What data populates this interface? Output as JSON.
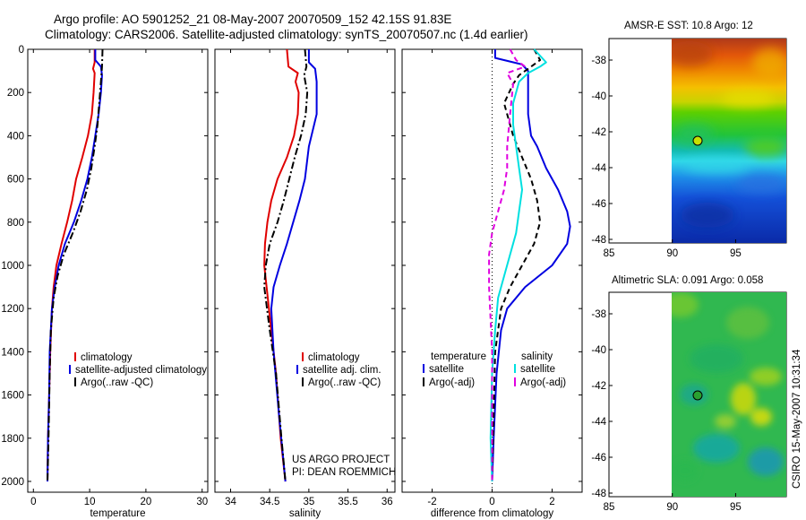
{
  "title": {
    "line1": "Argo profile: AO 5901252_21 08-May-2007 20070509_152 42.15S 91.83E",
    "line2": "Climatology: CARS2006. Satellite-adjusted climatology: synTS_20070507.nc (1.4d earlier)"
  },
  "colors": {
    "clim": "#e00000",
    "sat": "#0000e0",
    "argo": "#000000",
    "cyan": "#00e0e0",
    "magenta": "#e000e0"
  },
  "chart_data": [
    {
      "type": "line",
      "id": "temperature",
      "xlabel": "temperature",
      "xlim": [
        -1,
        31
      ],
      "ylim": [
        0,
        2050
      ],
      "x_ticks": [
        "0",
        "10",
        "20",
        "30"
      ],
      "y_ticks": [
        "0",
        "200",
        "400",
        "600",
        "800",
        "1000",
        "1200",
        "1400",
        "1600",
        "1800",
        "2000"
      ],
      "legend": [
        "climatology",
        "satellite-adjusted climatology",
        "Argo(..raw -QC)"
      ],
      "series": [
        {
          "name": "climatology",
          "color": "#e00000",
          "style": "solid",
          "x": [
            10.9,
            10.9,
            10.6,
            10.9,
            10.7,
            10.4,
            9.7,
            8.7,
            7.6,
            6.9,
            6.0,
            5.0,
            4.1,
            3.6,
            3.3,
            3.0,
            2.8,
            2.6,
            2.5
          ],
          "y": [
            0,
            60,
            90,
            110,
            200,
            300,
            400,
            500,
            600,
            700,
            800,
            900,
            1000,
            1100,
            1200,
            1400,
            1600,
            1800,
            2000
          ]
        },
        {
          "name": "satellite-adjusted climatology",
          "color": "#0000e0",
          "style": "solid",
          "x": [
            11.0,
            11.0,
            12.0,
            12.2,
            12.0,
            11.6,
            11.0,
            10.4,
            9.6,
            8.5,
            7.2,
            5.6,
            4.5,
            3.8,
            3.3,
            2.9,
            2.8,
            2.6,
            2.5
          ],
          "y": [
            0,
            50,
            80,
            120,
            200,
            300,
            400,
            500,
            600,
            700,
            800,
            900,
            1000,
            1100,
            1200,
            1400,
            1600,
            1800,
            2000
          ]
        },
        {
          "name": "Argo(..raw -QC)",
          "color": "#000000",
          "style": "dashdot",
          "x": [
            12.3,
            12.2,
            12.0,
            11.7,
            11.4,
            10.9,
            10.3,
            9.5,
            8.4,
            7.0,
            5.4,
            4.3,
            3.6,
            3.1,
            2.9,
            2.7,
            2.5
          ],
          "y": [
            0,
            80,
            150,
            250,
            350,
            450,
            550,
            650,
            750,
            850,
            950,
            1050,
            1150,
            1300,
            1500,
            1800,
            2000
          ]
        }
      ]
    },
    {
      "type": "line",
      "id": "salinity",
      "xlabel": "salinity",
      "xlim": [
        33.8,
        36.1
      ],
      "ylim": [
        0,
        2050
      ],
      "x_ticks": [
        "34",
        "34.5",
        "35",
        "35.5",
        "36"
      ],
      "legend": [
        "climatology",
        "satellite adj. clim.",
        "Argo(..raw -QC)"
      ],
      "annotation": [
        "US ARGO PROJECT",
        "PI: DEAN ROEMMICH"
      ],
      "series": [
        {
          "name": "climatology",
          "color": "#e00000",
          "style": "solid",
          "x": [
            34.72,
            34.74,
            34.86,
            34.83,
            34.87,
            34.86,
            34.81,
            34.72,
            34.6,
            34.52,
            34.47,
            34.44,
            34.43,
            34.46,
            34.52,
            34.58,
            34.64,
            34.7
          ],
          "y": [
            0,
            80,
            110,
            150,
            200,
            300,
            400,
            500,
            600,
            700,
            800,
            900,
            1000,
            1100,
            1300,
            1500,
            1800,
            2000
          ]
        },
        {
          "name": "satellite adj. clim.",
          "color": "#0000e0",
          "style": "solid",
          "x": [
            35.0,
            35.0,
            35.08,
            35.1,
            35.1,
            35.0,
            34.95,
            34.88,
            34.8,
            34.72,
            34.63,
            34.55,
            34.52,
            34.55,
            34.62,
            34.7
          ],
          "y": [
            0,
            60,
            90,
            150,
            300,
            450,
            600,
            700,
            800,
            900,
            1000,
            1100,
            1200,
            1400,
            1700,
            2000
          ]
        },
        {
          "name": "Argo(..raw -QC)",
          "color": "#000000",
          "style": "dashdot",
          "x": [
            34.95,
            34.97,
            34.94,
            34.98,
            34.96,
            34.9,
            34.82,
            34.75,
            34.68,
            34.6,
            34.5,
            34.45,
            34.43,
            34.5,
            34.58,
            34.65,
            34.7
          ],
          "y": [
            0,
            80,
            120,
            200,
            300,
            400,
            500,
            600,
            700,
            800,
            900,
            1000,
            1100,
            1300,
            1500,
            1800,
            2000
          ]
        }
      ]
    },
    {
      "type": "line",
      "id": "difference",
      "xlabel": "difference from climatology",
      "xlim": [
        -3,
        3
      ],
      "ylim": [
        0,
        2050
      ],
      "x_ticks": [
        "-2",
        "0",
        "2"
      ],
      "legend_temperature_title": "temperature",
      "legend_salinity_title": "salinity",
      "legend": [
        "satellite",
        "Argo(-adj)",
        "satellite",
        "Argo(-adj)"
      ],
      "series": [
        {
          "name": "temperature satellite",
          "color": "#0000e0",
          "style": "solid",
          "x": [
            0.1,
            0.1,
            1.0,
            1.2,
            1.2,
            1.2,
            1.3,
            1.5,
            1.8,
            2.2,
            2.5,
            2.6,
            2.5,
            2.0,
            1.1,
            0.5,
            0.3,
            0.15,
            0.05,
            0.0
          ],
          "y": [
            0,
            40,
            70,
            100,
            200,
            300,
            400,
            450,
            550,
            650,
            750,
            820,
            900,
            1000,
            1100,
            1200,
            1300,
            1500,
            1800,
            2000
          ]
        },
        {
          "name": "temperature Argo(-adj)",
          "color": "#000000",
          "style": "dashed",
          "x": [
            1.4,
            1.6,
            1.3,
            0.9,
            0.7,
            0.4,
            0.7,
            1.0,
            1.3,
            1.5,
            1.6,
            1.4,
            1.0,
            0.6,
            0.3,
            0.1,
            0.05,
            0.0
          ],
          "y": [
            0,
            50,
            80,
            120,
            160,
            250,
            400,
            500,
            600,
            700,
            800,
            900,
            1000,
            1100,
            1200,
            1400,
            1700,
            2000
          ]
        },
        {
          "name": "salinity satellite",
          "color": "#00e0e0",
          "style": "solid",
          "x": [
            1.4,
            1.8,
            1.6,
            1.2,
            0.9,
            0.7,
            0.7,
            0.8,
            0.9,
            1.0,
            0.9,
            0.8,
            0.6,
            0.4,
            0.2,
            0.1,
            0.0,
            -0.05,
            0.0
          ],
          "y": [
            0,
            60,
            80,
            110,
            150,
            250,
            350,
            450,
            550,
            650,
            750,
            850,
            950,
            1050,
            1150,
            1300,
            1500,
            1800,
            2000
          ]
        },
        {
          "name": "salinity Argo(-adj)",
          "color": "#e000e0",
          "style": "dashed",
          "x": [
            0.6,
            0.8,
            1.1,
            0.5,
            0.7,
            0.6,
            0.5,
            0.5,
            0.4,
            0.2,
            0.0,
            -0.1,
            -0.1,
            0.0,
            0.0
          ],
          "y": [
            0,
            50,
            80,
            110,
            160,
            300,
            450,
            550,
            650,
            750,
            850,
            950,
            1100,
            1400,
            2000
          ]
        }
      ]
    },
    {
      "type": "heatmap",
      "id": "sst-map",
      "title": "AMSR-E SST: 10.8 Argo: 12",
      "xlim": [
        85,
        99
      ],
      "ylim": [
        -48.2,
        -36.8
      ],
      "x_ticks": [
        "85",
        "90",
        "95"
      ],
      "y_ticks": [
        "-38",
        "-40",
        "-42",
        "-44",
        "-46",
        "-48"
      ],
      "data_extent_lon": [
        90,
        99
      ],
      "argo_position": {
        "lon": 91.83,
        "lat": -42.15
      }
    },
    {
      "type": "heatmap",
      "id": "sla-map",
      "title": "Altimetric SLA: 0.091 Argo: 0.058",
      "xlim": [
        85,
        99
      ],
      "ylim": [
        -48.2,
        -36.8
      ],
      "x_ticks": [
        "85",
        "90",
        "95"
      ],
      "y_ticks": [
        "-38",
        "-40",
        "-42",
        "-44",
        "-46",
        "-48"
      ],
      "data_extent_lon": [
        90,
        99
      ],
      "argo_position": {
        "lon": 91.83,
        "lat": -42.15
      }
    }
  ],
  "side_label": "CSIRO 15-May-2007 10:31:34"
}
